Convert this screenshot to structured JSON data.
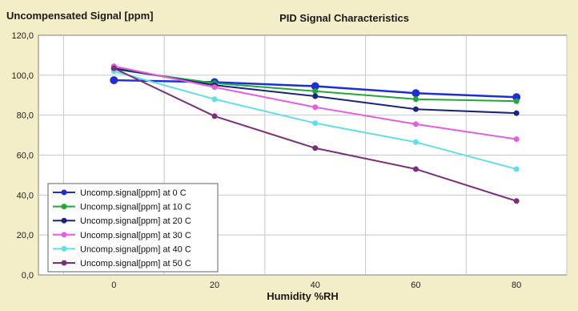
{
  "chart_data": {
    "type": "line",
    "title": "PID Signal Characteristics",
    "ylabel": "Uncompensated Signal [ppm]",
    "xlabel": "Humidity %RH",
    "x": [
      0,
      20,
      40,
      60,
      80
    ],
    "xlim": [
      -15,
      90
    ],
    "ylim": [
      0,
      120
    ],
    "x_ticks": [
      "0",
      "20",
      "40",
      "60",
      "80"
    ],
    "y_ticks": [
      "0,0",
      "20,0",
      "40,0",
      "60,0",
      "80,0",
      "100,0",
      "120,0"
    ],
    "y_tick_values": [
      0,
      20,
      40,
      60,
      80,
      100,
      120
    ],
    "grid": true,
    "legend_position": "bottom-left",
    "series": [
      {
        "name": "Uncomp.signal[ppm] at 0 C",
        "values": [
          97.5,
          96.5,
          94.5,
          91,
          89
        ],
        "color": "#1c2fd6"
      },
      {
        "name": "Uncomp.signal[ppm] at 10 C",
        "values": [
          103,
          96,
          92,
          88,
          87
        ],
        "color": "#22a83a"
      },
      {
        "name": "Uncomp.signal[ppm] at 20 C",
        "values": [
          103.5,
          95,
          89.5,
          83,
          81
        ],
        "color": "#1a237e"
      },
      {
        "name": "Uncomp.signal[ppm] at 30 C",
        "values": [
          104.5,
          94,
          84,
          75.5,
          68
        ],
        "color": "#e65ee0"
      },
      {
        "name": "Uncomp.signal[ppm] at 40 C",
        "values": [
          102,
          88,
          76,
          66.5,
          53
        ],
        "color": "#5fe0e8"
      },
      {
        "name": "Uncomp.signal[ppm] at 50 C",
        "values": [
          103.5,
          79.5,
          63.5,
          53,
          37
        ],
        "color": "#7a2f7a"
      }
    ]
  },
  "colors": {
    "frame_background": "#f3edc8",
    "plot_background": "#ffffff",
    "gridline": "#c8c8c8",
    "axis": "#808080"
  }
}
